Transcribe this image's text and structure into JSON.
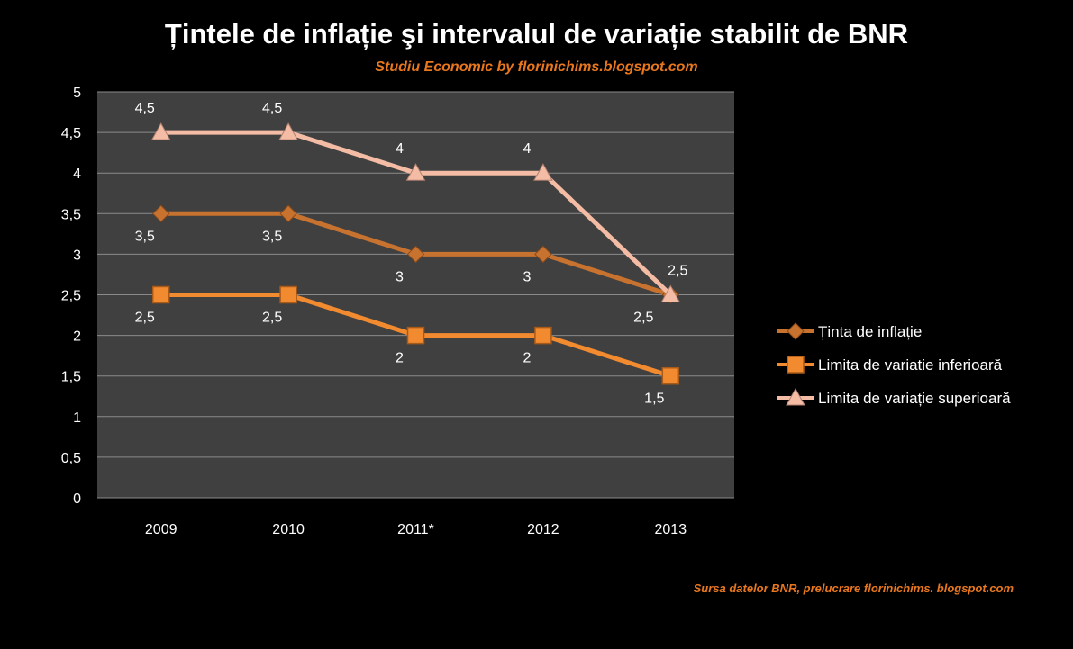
{
  "chart_data": {
    "type": "line",
    "title": "Țintele de inflație şi intervalul de variație stabilit de BNR",
    "subtitle": "Studiu Economic by florinichims.blogspot.com",
    "source": "Sursa datelor BNR, prelucrare florinichims. blogspot.com",
    "categories": [
      "2009",
      "2010",
      "2011*",
      "2012",
      "2013"
    ],
    "ylim": [
      0,
      5
    ],
    "yticks": [
      0,
      0.5,
      1,
      1.5,
      2,
      2.5,
      3,
      3.5,
      4,
      4.5,
      5
    ],
    "grid": true,
    "legend_position": "right",
    "decimal_separator": ",",
    "plot_background": "#404040",
    "series": [
      {
        "name": "Țintа de inflație",
        "values": [
          3.5,
          3.5,
          3,
          3,
          2.5
        ],
        "color": "#c8722f",
        "marker": "diamond",
        "label_position": "below"
      },
      {
        "name": "Limita de variatie inferioară",
        "values": [
          2.5,
          2.5,
          2,
          2,
          1.5
        ],
        "color": "#f28a30",
        "marker": "square",
        "label_position": "below"
      },
      {
        "name": "Limita de variație superioară",
        "values": [
          4.5,
          4.5,
          4,
          4,
          2.5
        ],
        "color": "#f4bca4",
        "marker": "triangle",
        "label_position": "above"
      }
    ]
  }
}
